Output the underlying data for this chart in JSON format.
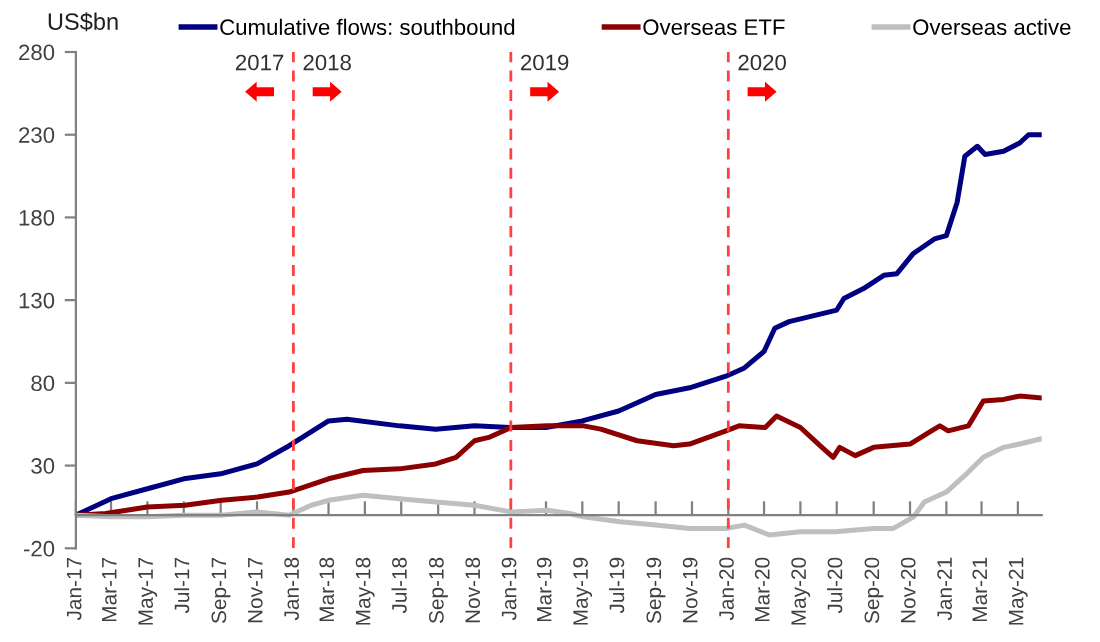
{
  "chart_data": {
    "type": "line",
    "ylabel": "US$bn",
    "legend": "top",
    "grid": false,
    "marker": "none",
    "line_style": "solid",
    "xlim": [
      "2017-01-01",
      "2021-06-10"
    ],
    "ylim": [
      -20,
      280
    ],
    "yticks": [
      -20,
      30,
      80,
      130,
      180,
      230,
      280
    ],
    "xticks": [
      {
        "value": "2017-01-01",
        "label": "Jan-17"
      },
      {
        "value": "2017-03-01",
        "label": "Mar-17"
      },
      {
        "value": "2017-05-01",
        "label": "May-17"
      },
      {
        "value": "2017-07-01",
        "label": "Jul-17"
      },
      {
        "value": "2017-09-01",
        "label": "Sep-17"
      },
      {
        "value": "2017-11-01",
        "label": "Nov-17"
      },
      {
        "value": "2018-01-01",
        "label": "Jan-18"
      },
      {
        "value": "2018-03-01",
        "label": "Mar-18"
      },
      {
        "value": "2018-05-01",
        "label": "May-18"
      },
      {
        "value": "2018-07-01",
        "label": "Jul-18"
      },
      {
        "value": "2018-09-01",
        "label": "Sep-18"
      },
      {
        "value": "2018-11-01",
        "label": "Nov-18"
      },
      {
        "value": "2019-01-01",
        "label": "Jan-19"
      },
      {
        "value": "2019-03-01",
        "label": "Mar-19"
      },
      {
        "value": "2019-05-01",
        "label": "May-19"
      },
      {
        "value": "2019-07-01",
        "label": "Jul-19"
      },
      {
        "value": "2019-09-01",
        "label": "Sep-19"
      },
      {
        "value": "2019-11-01",
        "label": "Nov-19"
      },
      {
        "value": "2020-01-01",
        "label": "Jan-20"
      },
      {
        "value": "2020-03-01",
        "label": "Mar-20"
      },
      {
        "value": "2020-05-01",
        "label": "May-20"
      },
      {
        "value": "2020-07-01",
        "label": "Jul-20"
      },
      {
        "value": "2020-09-01",
        "label": "Sep-20"
      },
      {
        "value": "2020-11-01",
        "label": "Nov-20"
      },
      {
        "value": "2021-01-01",
        "label": "Jan-21"
      },
      {
        "value": "2021-03-01",
        "label": "Mar-21"
      },
      {
        "value": "2021-05-01",
        "label": "May-21"
      }
    ],
    "ref_lines": [
      {
        "axis": "x",
        "value": "2018-01-01",
        "color": "#ff4040",
        "line_style": "dashed"
      },
      {
        "axis": "x",
        "value": "2019-01-01",
        "color": "#ff4040",
        "line_style": "dashed"
      },
      {
        "axis": "x",
        "value": "2020-01-01",
        "color": "#ff4040",
        "line_style": "dashed"
      }
    ],
    "annotations": [
      "2017",
      "2018",
      "2019",
      "2020"
    ],
    "series": [
      {
        "name": "Cumulative flows: southbound",
        "color": "#000080",
        "x": [
          "2017-01-01",
          "2017-03-01",
          "2017-05-01",
          "2017-07-01",
          "2017-09-01",
          "2017-11-01",
          "2017-12-25",
          "2018-03-01",
          "2018-04-01",
          "2018-06-28",
          "2018-08-28",
          "2018-11-01",
          "2019-01-01",
          "2019-03-01",
          "2019-05-01",
          "2019-07-01",
          "2019-09-01",
          "2019-10-28",
          "2019-12-28",
          "2020-01-28",
          "2020-03-01",
          "2020-03-19",
          "2020-04-12",
          "2020-07-01",
          "2020-07-13",
          "2020-08-15",
          "2020-09-18",
          "2020-10-10",
          "2020-11-06",
          "2020-12-12",
          "2021-01-01",
          "2021-01-19",
          "2021-02-01",
          "2021-02-22",
          "2021-03-07",
          "2021-04-07",
          "2021-05-04",
          "2021-05-19",
          "2021-06-07"
        ],
        "values": [
          0,
          10,
          16,
          22,
          25,
          31,
          42,
          57,
          58,
          54,
          52,
          54,
          53,
          53,
          57,
          63,
          73,
          77,
          84,
          89,
          99,
          113,
          117,
          124,
          131,
          137,
          145,
          146,
          158,
          167,
          169,
          189,
          217,
          223,
          218,
          220,
          225,
          230,
          230
        ]
      },
      {
        "name": "Overseas ETF",
        "color": "#8b0000",
        "x": [
          "2017-01-01",
          "2017-02-20",
          "2017-05-01",
          "2017-07-03",
          "2017-09-03",
          "2017-11-02",
          "2017-12-25",
          "2018-03-01",
          "2018-04-28",
          "2018-06-28",
          "2018-08-28",
          "2018-10-01",
          "2018-11-01",
          "2018-11-25",
          "2019-01-01",
          "2019-03-03",
          "2019-05-03",
          "2019-06-01",
          "2019-08-01",
          "2019-10-01",
          "2019-10-28",
          "2019-12-28",
          "2020-01-19",
          "2020-03-03",
          "2020-03-22",
          "2020-05-01",
          "2020-06-03",
          "2020-06-25",
          "2020-07-06",
          "2020-08-01",
          "2020-09-01",
          "2020-11-01",
          "2020-12-07",
          "2020-12-21",
          "2021-01-04",
          "2021-02-07",
          "2021-03-04",
          "2021-04-07",
          "2021-05-04",
          "2021-06-07"
        ],
        "values": [
          0,
          1,
          5,
          6,
          9,
          11,
          14,
          22,
          27,
          28,
          31,
          35,
          45,
          47,
          53,
          54,
          54,
          52,
          45,
          42,
          43,
          51,
          54,
          53,
          60,
          53,
          42,
          35,
          41,
          36,
          41,
          43,
          51,
          54,
          51,
          54,
          69,
          70,
          72,
          71
        ]
      },
      {
        "name": "Overseas active",
        "color": "#bfbfbf",
        "x": [
          "2017-01-01",
          "2017-03-01",
          "2017-05-01",
          "2017-07-01",
          "2017-09-01",
          "2017-11-01",
          "2017-12-25",
          "2018-01-31",
          "2018-03-01",
          "2018-04-28",
          "2018-06-28",
          "2018-08-28",
          "2018-11-01",
          "2019-01-01",
          "2019-03-03",
          "2019-04-10",
          "2019-05-03",
          "2019-07-03",
          "2019-09-01",
          "2019-10-28",
          "2019-12-28",
          "2020-01-28",
          "2020-03-10",
          "2020-05-01",
          "2020-06-28",
          "2020-09-01",
          "2020-10-04",
          "2020-11-07",
          "2020-11-25",
          "2021-01-01",
          "2021-02-01",
          "2021-03-04",
          "2021-04-07",
          "2021-05-04",
          "2021-06-07"
        ],
        "values": [
          0,
          -1,
          -1,
          0,
          0,
          2,
          0,
          6,
          9,
          12,
          10,
          8,
          6,
          2,
          3,
          1,
          -1,
          -4,
          -6,
          -8,
          -8,
          -6,
          -12,
          -10,
          -10,
          -8,
          -8,
          -1,
          8,
          14,
          24,
          35,
          41,
          43,
          46
        ]
      }
    ]
  }
}
